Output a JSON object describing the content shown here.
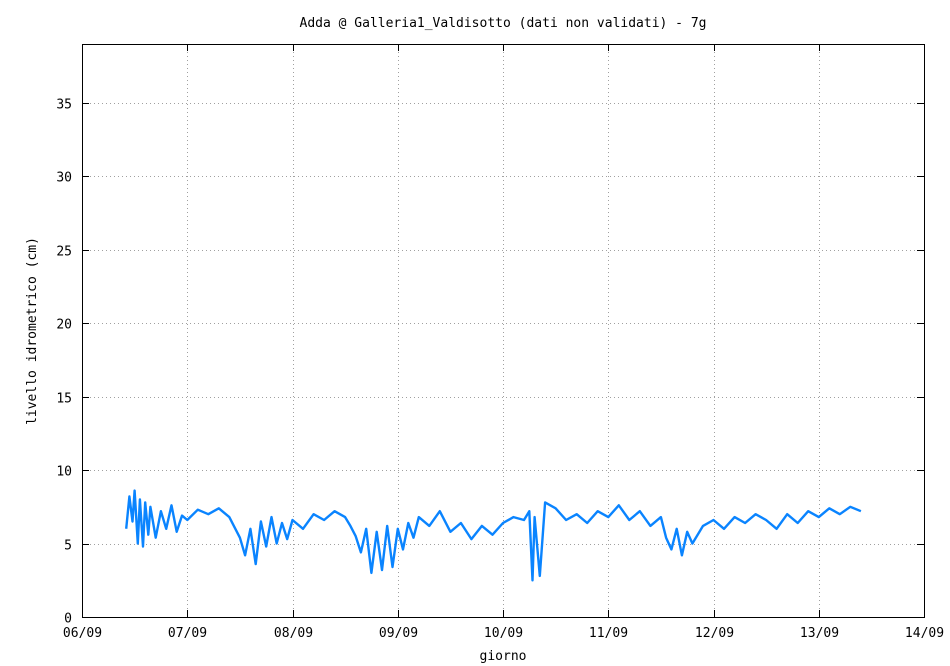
{
  "chart_data": {
    "type": "line",
    "title": "Adda @ Galleria1_Valdisotto (dati non validati) - 7g",
    "xlabel": "giorno",
    "ylabel": "livello idrometrico (cm)",
    "x_tick_labels": [
      "06/09",
      "07/09",
      "08/09",
      "09/09",
      "10/09",
      "11/09",
      "12/09",
      "13/09",
      "14/09"
    ],
    "y_ticks": [
      0,
      5,
      10,
      15,
      20,
      25,
      30,
      35
    ],
    "xlim": [
      0,
      8
    ],
    "ylim": [
      0,
      39
    ],
    "grid": true,
    "colors": {
      "series": "#0a84ff"
    },
    "series": [
      {
        "x": [
          0.42,
          0.45,
          0.48,
          0.5,
          0.53,
          0.55,
          0.58,
          0.6,
          0.63,
          0.65,
          0.7,
          0.75,
          0.8,
          0.85,
          0.9,
          0.95,
          1.0,
          1.1,
          1.2,
          1.3,
          1.4,
          1.5,
          1.55,
          1.6,
          1.65,
          1.7,
          1.75,
          1.8,
          1.85,
          1.9,
          1.95,
          2.0,
          2.1,
          2.2,
          2.3,
          2.4,
          2.5,
          2.55,
          2.6,
          2.65,
          2.7,
          2.75,
          2.8,
          2.85,
          2.9,
          2.95,
          3.0,
          3.05,
          3.1,
          3.15,
          3.2,
          3.3,
          3.4,
          3.5,
          3.6,
          3.7,
          3.8,
          3.9,
          4.0,
          4.1,
          4.2,
          4.25,
          4.28,
          4.3,
          4.35,
          4.4,
          4.5,
          4.6,
          4.7,
          4.8,
          4.9,
          5.0,
          5.1,
          5.2,
          5.3,
          5.4,
          5.5,
          5.55,
          5.6,
          5.65,
          5.7,
          5.75,
          5.8,
          5.9,
          6.0,
          6.1,
          6.2,
          6.3,
          6.4,
          6.5,
          6.6,
          6.7,
          6.8,
          6.9,
          7.0,
          7.1,
          7.2,
          7.3,
          7.4
        ],
        "values": [
          6.0,
          8.2,
          6.5,
          8.6,
          5.0,
          8.0,
          4.8,
          7.8,
          5.6,
          7.5,
          5.4,
          7.2,
          6.0,
          7.6,
          5.8,
          6.9,
          6.6,
          7.3,
          7.0,
          7.4,
          6.8,
          5.4,
          4.2,
          6.0,
          3.6,
          6.5,
          4.8,
          6.8,
          5.0,
          6.4,
          5.3,
          6.6,
          6.0,
          7.0,
          6.6,
          7.2,
          6.8,
          6.2,
          5.5,
          4.4,
          6.0,
          3.0,
          5.8,
          3.2,
          6.2,
          3.4,
          6.0,
          4.6,
          6.4,
          5.4,
          6.8,
          6.2,
          7.2,
          5.8,
          6.4,
          5.3,
          6.2,
          5.6,
          6.4,
          6.8,
          6.6,
          7.2,
          2.5,
          6.8,
          2.8,
          7.8,
          7.4,
          6.6,
          7.0,
          6.4,
          7.2,
          6.8,
          7.6,
          6.6,
          7.2,
          6.2,
          6.8,
          5.4,
          4.6,
          6.0,
          4.2,
          5.8,
          5.0,
          6.2,
          6.6,
          6.0,
          6.8,
          6.4,
          7.0,
          6.6,
          6.0,
          7.0,
          6.4,
          7.2,
          6.8,
          7.4,
          7.0,
          7.5,
          7.2
        ]
      }
    ]
  }
}
